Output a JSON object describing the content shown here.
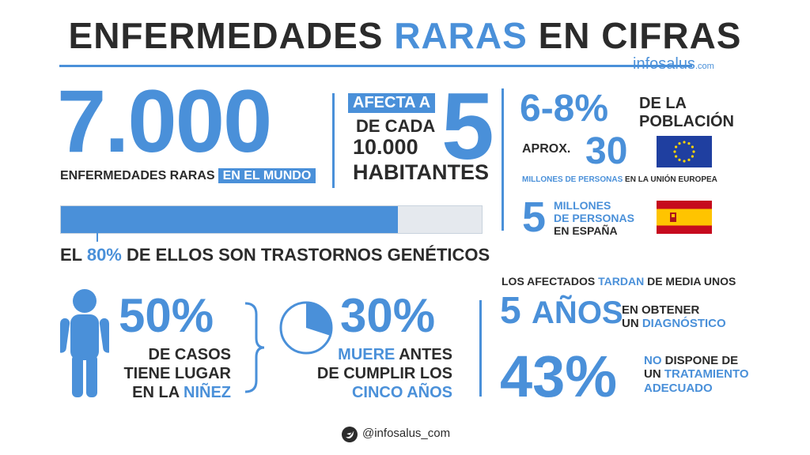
{
  "header": {
    "title_pre": "ENFERMEDADES ",
    "title_hl": "RARAS",
    "title_post": " EN CIFRAS",
    "brand": "infosalus",
    "brand_suffix": ".com"
  },
  "stats": {
    "diseases_count": "7.000",
    "diseases_label": "ENFERMEDADES RARAS",
    "diseases_label_hl": "EN EL MUNDO",
    "affects_label": "AFECTA A",
    "affects_num": "5",
    "affects_of": "DE CADA",
    "affects_total": "10.000",
    "affects_unit": "HABITANTES",
    "genetic_fraction": 0.8,
    "genetic_pre": "EL ",
    "genetic_pct": "80%",
    "genetic_post": " DE ELLOS SON TRASTORNOS GENÉTICOS"
  },
  "europe": {
    "pct": "6-8%",
    "pct_label_1": "DE LA",
    "pct_label_2": "POBLACIÓN",
    "aprox": "APROX.",
    "millions": "30",
    "millions_label_hl": "MILLONES DE PERSONAS",
    "millions_label": " EN LA UNIÓN EUROPEA",
    "flag": "eu-flag"
  },
  "spain": {
    "num": "5",
    "line1": "MILLONES",
    "line2": "DE PERSONAS",
    "line3": "EN ESPAÑA",
    "flag": "spain-flag"
  },
  "childhood": {
    "pct": "50%",
    "line1": "DE CASOS",
    "line2": "TIENE LUGAR",
    "line3_pre": "EN LA ",
    "line3_hl": "NIÑEZ",
    "icon": "child-icon"
  },
  "mortality": {
    "pct": "30%",
    "pie_fraction": 0.3,
    "line1_hl": "MUERE",
    "line1": " ANTES",
    "line2": "DE CUMPLIR LOS",
    "line3_hl": "CINCO AÑOS"
  },
  "diagnosis": {
    "intro_pre": "LOS AFECTADOS ",
    "intro_hl": "TARDAN",
    "intro_post": " DE MEDIA UNOS",
    "years_num": "5",
    "years_unit": "AÑOS",
    "line1": "EN OBTENER",
    "line2_pre": "UN ",
    "line2_hl": "DIAGNÓSTICO",
    "pct": "43%",
    "t_line1_hl": "NO",
    "t_line1": " DISPONE DE",
    "t_line2_pre": "UN ",
    "t_line2_hl": "TRATAMIENTO",
    "t_line3_hl": "ADECUADO"
  },
  "footer": {
    "twitter": "@infosalus_com",
    "icon": "twitter-icon"
  },
  "colors": {
    "accent": "#4a90d9",
    "text": "#2b2b2b",
    "track": "#e5e9ee"
  }
}
